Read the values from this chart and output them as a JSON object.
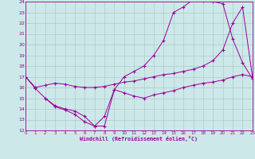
{
  "xlabel": "Windchill (Refroidissement éolien,°C)",
  "bg_color": "#cde8e8",
  "grid_color": "#aacccc",
  "line_color": "#990099",
  "xmin": 0,
  "xmax": 23,
  "ymin": 12,
  "ymax": 24,
  "series1_x": [
    0,
    1,
    2,
    3,
    4,
    5,
    6,
    7,
    8,
    9,
    10,
    11,
    12,
    13,
    14,
    15,
    16,
    17,
    18,
    19,
    20,
    21,
    22,
    23
  ],
  "series1_y": [
    17.0,
    15.9,
    15.0,
    14.2,
    13.9,
    13.5,
    12.8,
    12.4,
    13.3,
    15.8,
    17.0,
    17.5,
    18.0,
    19.0,
    20.4,
    23.0,
    23.5,
    24.2,
    24.1,
    24.0,
    23.8,
    20.5,
    18.3,
    16.8
  ],
  "series2_x": [
    0,
    1,
    2,
    3,
    4,
    5,
    6,
    7,
    8,
    9,
    10,
    11,
    12,
    13,
    14,
    15,
    16,
    17,
    18,
    19,
    20,
    21,
    22,
    23
  ],
  "series2_y": [
    17.0,
    16.0,
    16.2,
    16.4,
    16.3,
    16.1,
    16.0,
    16.0,
    16.1,
    16.3,
    16.5,
    16.6,
    16.8,
    17.0,
    17.2,
    17.3,
    17.5,
    17.7,
    18.0,
    18.5,
    19.5,
    22.0,
    23.5,
    17.0
  ],
  "series3_x": [
    2,
    3,
    4,
    5,
    6,
    7,
    8,
    9,
    10,
    11,
    12,
    13,
    14,
    15,
    16,
    17,
    18,
    19,
    20,
    21,
    22,
    23
  ],
  "series3_y": [
    15.0,
    14.3,
    14.0,
    13.8,
    13.3,
    12.4,
    12.4,
    15.8,
    15.5,
    15.2,
    15.0,
    15.3,
    15.5,
    15.7,
    16.0,
    16.2,
    16.4,
    16.5,
    16.7,
    17.0,
    17.2,
    17.0
  ]
}
